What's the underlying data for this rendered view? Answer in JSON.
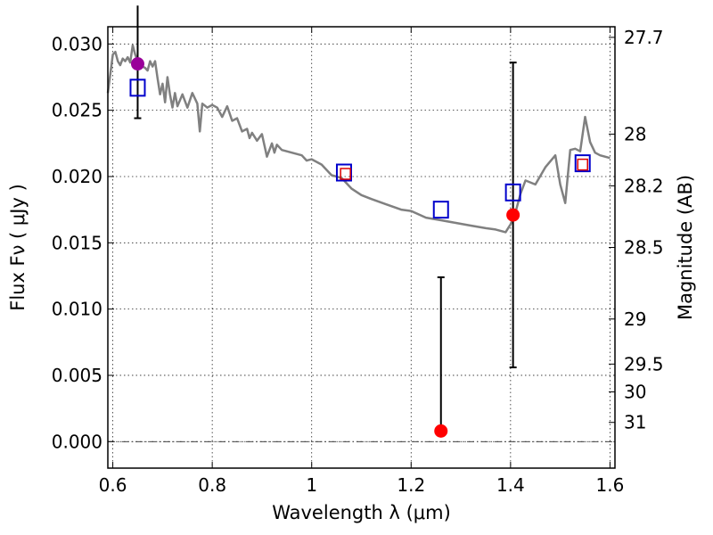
{
  "chart_data": {
    "type": "scatter",
    "title": "",
    "xlabel": "Wavelength  λ (μm)",
    "ylabel": "Flux  Fν  ( μJy )",
    "y2label": "Magnitude (AB)",
    "xlim": [
      0.59,
      1.61
    ],
    "ylim": [
      -0.002,
      0.0313
    ],
    "grid": true,
    "x_ticks": [
      0.6,
      0.8,
      1.0,
      1.2,
      1.4,
      1.6
    ],
    "x_tick_labels": [
      "0.6",
      "0.8",
      "1",
      "1.2",
      "1.4",
      "1.6"
    ],
    "y_ticks": [
      0.0,
      0.005,
      0.01,
      0.015,
      0.02,
      0.025,
      0.03
    ],
    "y_tick_labels": [
      "0.000",
      "0.005",
      "0.010",
      "0.015",
      "0.020",
      "0.025",
      "0.030"
    ],
    "magnitude_ticks": [
      {
        "label": "27.7",
        "flux": 0.0305
      },
      {
        "label": "28",
        "flux": 0.0232
      },
      {
        "label": "28.2",
        "flux": 0.0193
      },
      {
        "label": "28.5",
        "flux": 0.01465
      },
      {
        "label": "29",
        "flux": 0.00925
      },
      {
        "label": "29.5",
        "flux": 0.00585
      },
      {
        "label": "30",
        "flux": 0.00375
      },
      {
        "label": "31",
        "flux": 0.00145
      }
    ],
    "zero_line": 0.0,
    "colors": {
      "sed": "#808080",
      "model_box": "#0000cc",
      "inner_box": "#dd0000",
      "observed": "#ff0000",
      "observed_highlight": "#990099",
      "errorbar": "#000000"
    },
    "series": [
      {
        "role": "model-sed-line",
        "x": [
          0.59,
          0.6,
          0.605,
          0.61,
          0.615,
          0.62,
          0.625,
          0.63,
          0.635,
          0.64,
          0.645,
          0.65,
          0.655,
          0.66,
          0.665,
          0.67,
          0.675,
          0.68,
          0.685,
          0.69,
          0.695,
          0.7,
          0.705,
          0.71,
          0.715,
          0.72,
          0.725,
          0.73,
          0.74,
          0.75,
          0.76,
          0.77,
          0.775,
          0.78,
          0.79,
          0.8,
          0.81,
          0.82,
          0.83,
          0.84,
          0.85,
          0.86,
          0.87,
          0.875,
          0.88,
          0.89,
          0.9,
          0.91,
          0.92,
          0.925,
          0.93,
          0.94,
          0.95,
          0.96,
          0.97,
          0.98,
          0.99,
          1.0,
          1.02,
          1.04,
          1.06,
          1.08,
          1.1,
          1.12,
          1.15,
          1.18,
          1.2,
          1.23,
          1.26,
          1.29,
          1.32,
          1.35,
          1.37,
          1.38,
          1.39,
          1.4,
          1.41,
          1.42,
          1.43,
          1.45,
          1.47,
          1.49,
          1.5,
          1.51,
          1.52,
          1.53,
          1.54,
          1.55,
          1.56,
          1.57,
          1.58,
          1.6
        ],
        "y": [
          0.0263,
          0.0292,
          0.0294,
          0.0287,
          0.0284,
          0.0289,
          0.0287,
          0.029,
          0.0286,
          0.0299,
          0.0292,
          0.0287,
          0.0285,
          0.0283,
          0.0282,
          0.028,
          0.0287,
          0.0283,
          0.0287,
          0.0274,
          0.0262,
          0.027,
          0.0256,
          0.0275,
          0.0262,
          0.0252,
          0.0263,
          0.0253,
          0.0262,
          0.0252,
          0.0263,
          0.0255,
          0.0234,
          0.0255,
          0.0252,
          0.0254,
          0.0252,
          0.0245,
          0.0253,
          0.0242,
          0.0244,
          0.0234,
          0.0236,
          0.0229,
          0.0233,
          0.0227,
          0.0232,
          0.0215,
          0.0225,
          0.0218,
          0.0224,
          0.022,
          0.0219,
          0.0218,
          0.0217,
          0.0216,
          0.0212,
          0.0213,
          0.0209,
          0.0201,
          0.0199,
          0.0191,
          0.0186,
          0.0183,
          0.0179,
          0.0175,
          0.0174,
          0.0169,
          0.0167,
          0.0165,
          0.0163,
          0.0161,
          0.016,
          0.0159,
          0.0158,
          0.0164,
          0.0173,
          0.0187,
          0.0197,
          0.0194,
          0.0207,
          0.0216,
          0.0194,
          0.018,
          0.022,
          0.0221,
          0.0219,
          0.0245,
          0.0226,
          0.0218,
          0.0216,
          0.0214
        ]
      },
      {
        "role": "model-photometry",
        "marker": "open-square",
        "x": [
          0.65,
          1.065,
          1.26,
          1.405,
          1.545
        ],
        "y": [
          0.0267,
          0.0203,
          0.0175,
          0.0188,
          0.021
        ]
      },
      {
        "role": "model-photometry-inner",
        "marker": "open-square-small",
        "x": [
          1.068,
          1.545
        ],
        "y": [
          0.0202,
          0.0209
        ]
      },
      {
        "role": "observed-photometry",
        "marker": "filled-circle",
        "x": [
          0.65,
          1.26,
          1.405
        ],
        "y": [
          0.0285,
          0.0008,
          0.0171
        ],
        "yerr_low": [
          0.0041,
          null,
          0.0115
        ],
        "yerr_high": [
          0.0044,
          0.0116,
          0.0115
        ],
        "colors": [
          "#990099",
          "#ff0000",
          "#ff0000"
        ]
      }
    ]
  }
}
